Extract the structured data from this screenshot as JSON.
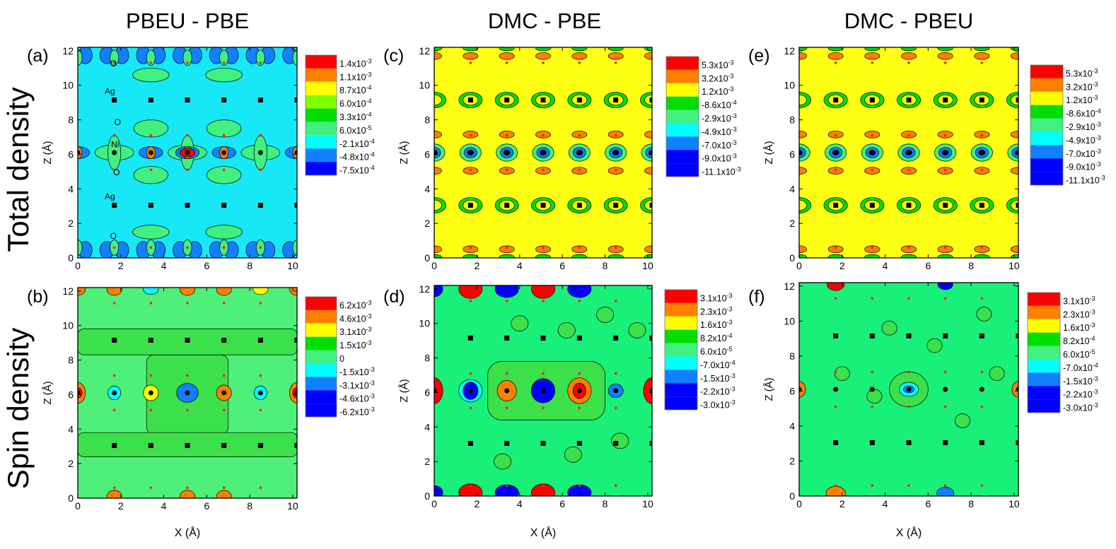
{
  "chart_data": {
    "type": "heatmap",
    "column_titles": [
      "PBEU - PBE",
      "DMC - PBE",
      "DMC - PBEU"
    ],
    "row_titles": [
      "Total density",
      "Spin density"
    ],
    "xlabel": "X (Å)",
    "ylabel": "Z (Å)",
    "xlim": [
      0,
      10.2
    ],
    "ylim": [
      0,
      12.2
    ],
    "xticks": [
      "0",
      "2",
      "4",
      "6",
      "8",
      "10"
    ],
    "yticks": [
      "0",
      "2",
      "4",
      "6",
      "8",
      "10",
      "12"
    ],
    "atoms": {
      "Ni": {
        "x": [
          0,
          1.7,
          3.4,
          5.1,
          6.8,
          8.5,
          10.2
        ],
        "z": 6.1
      },
      "Ag": {
        "x": [
          1.7,
          3.4,
          5.1,
          6.8,
          8.5,
          10.2
        ],
        "z": [
          3.05,
          9.15
        ]
      },
      "O": {
        "x": [
          1.7,
          3.4,
          5.1,
          6.8,
          8.5
        ],
        "z": [
          0.6,
          5.1,
          7.1,
          11.3
        ]
      }
    },
    "panels": [
      {
        "id": "a",
        "label": "(a)",
        "background": "#16e9f5",
        "atom_labels": [
          {
            "text": "O",
            "x": 1.5,
            "z": 11.1
          },
          {
            "text": "Ag",
            "x": 1.25,
            "z": 9.5
          },
          {
            "text": "O",
            "x": 1.7,
            "z": 7.7
          },
          {
            "text": "Ni",
            "x": 1.55,
            "z": 6.4
          },
          {
            "text": "O",
            "x": 1.65,
            "z": 4.8
          },
          {
            "text": "Ag",
            "x": 1.25,
            "z": 3.4
          },
          {
            "text": "O",
            "x": 1.5,
            "z": 1.1
          }
        ],
        "colorbar": {
          "labels": [
            "1.4x10-3",
            "1.1x10-3",
            "8.7x10-4",
            "6.0x10-4",
            "3.3x10-4",
            "6.0x10-5",
            "-2.1x10-4",
            "-4.8x10-4",
            "-7.5x10-4"
          ],
          "colors": [
            "#ff0000",
            "#ff8000",
            "#ffff00",
            "#80ff00",
            "#00dd00",
            "#40f080",
            "#00ffff",
            "#1080ff",
            "#0000ff"
          ]
        }
      },
      {
        "id": "b",
        "label": "(b)",
        "background": "#4ff07a",
        "atom_labels": [],
        "colorbar": {
          "labels": [
            "6.2x10-3",
            "4.6x10-3",
            "3.1x10-3",
            "1.5x10-3",
            "0",
            "-1.5x10-3",
            "-3.1x10-3",
            "-4.6x10-3",
            "-6.2x10-3"
          ],
          "colors": [
            "#ff0000",
            "#ff8000",
            "#ffff00",
            "#00dd00",
            "#40f080",
            "#00ffff",
            "#1080ff",
            "#0000ff",
            "#0000ff"
          ]
        }
      },
      {
        "id": "c",
        "label": "(c)",
        "background": "#ffff14",
        "atom_labels": [],
        "colorbar": {
          "labels": [
            "5.3x10-3",
            "3.2x10-3",
            "1.2x10-3",
            "-8.6x10-4",
            "-2.9x10-3",
            "-4.9x10-3",
            "-7.0x10-3",
            "-9.0x10-3",
            "-11.1x10-3"
          ],
          "colors": [
            "#ff0000",
            "#ff8000",
            "#ffff00",
            "#00dd00",
            "#40f080",
            "#00ffff",
            "#1080ff",
            "#0000ff",
            "#0000ff"
          ]
        }
      },
      {
        "id": "d",
        "label": "(d)",
        "background": "#18f07a",
        "atom_labels": [],
        "colorbar": {
          "labels": [
            "3.1x10-3",
            "2.3x10-3",
            "1.6x10-3",
            "8.2x10-4",
            "6.0x10-5",
            "-7.0x10-4",
            "-1.5x10-3",
            "-2.2x10-3",
            "-3.0x10-3"
          ],
          "colors": [
            "#ff0000",
            "#ff8000",
            "#ffff00",
            "#00dd00",
            "#40f080",
            "#00ffff",
            "#1080ff",
            "#0000ff",
            "#0000ff"
          ]
        }
      },
      {
        "id": "e",
        "label": "(e)",
        "background": "#ffff14",
        "atom_labels": [],
        "colorbar": {
          "labels": [
            "5.3x10-3",
            "3.2x10-3",
            "1.2x10-3",
            "-8.6x10-4",
            "-2.9x10-3",
            "-4.9x10-3",
            "-7.0x10-3",
            "-9.0x10-3",
            "-11.1x10-3"
          ],
          "colors": [
            "#ff0000",
            "#ff8000",
            "#ffff00",
            "#00dd00",
            "#40f080",
            "#00ffff",
            "#1080ff",
            "#0000ff",
            "#0000ff"
          ]
        }
      },
      {
        "id": "f",
        "label": "(f)",
        "background": "#18f07a",
        "atom_labels": [],
        "colorbar": {
          "labels": [
            "3.1x10-3",
            "2.3x10-3",
            "1.6x10-3",
            "8.2x10-4",
            "6.0x10-5",
            "-7.0x10-4",
            "-1.5x10-3",
            "-2.2x10-3",
            "-3.0x10-3"
          ],
          "colors": [
            "#ff0000",
            "#ff8000",
            "#ffff00",
            "#00dd00",
            "#40f080",
            "#00ffff",
            "#1080ff",
            "#0000ff",
            "#0000ff"
          ]
        }
      }
    ]
  }
}
